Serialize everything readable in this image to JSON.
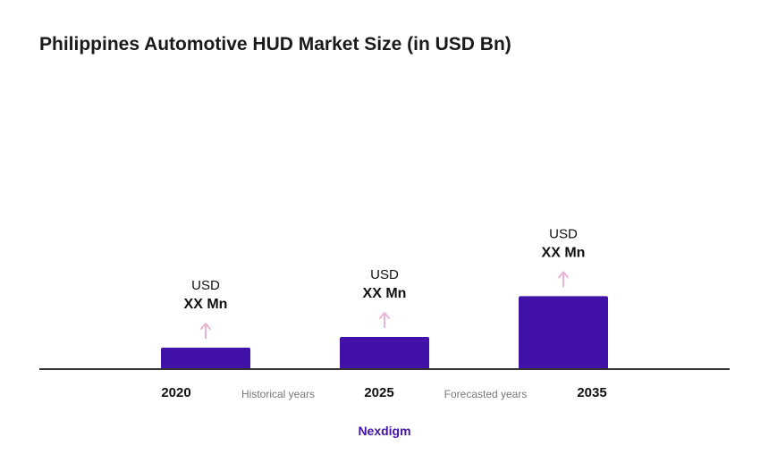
{
  "colors": {
    "bar": "#4212A8",
    "arrow": "#E7B4D4",
    "axis": "#333333",
    "text": "#111111",
    "note": "#777777",
    "brand": "#4212A8"
  },
  "chart_data": {
    "type": "bar",
    "title": "Philippines Automotive HUD Market Size (in USD Bn)",
    "categories": [
      "2020",
      "2025",
      "2035"
    ],
    "values": [
      1,
      1.5,
      3.4
    ],
    "data_labels": [
      {
        "line1": "USD",
        "line2": "XX Mn"
      },
      {
        "line1": "USD",
        "line2": "XX Mn"
      },
      {
        "line1": "USD",
        "line2": "XX Mn"
      }
    ],
    "period_labels": [
      "Historical years",
      "Forecasted years"
    ],
    "grid": false,
    "legend": "none"
  },
  "footer": {
    "brand": "Nexdigm"
  }
}
